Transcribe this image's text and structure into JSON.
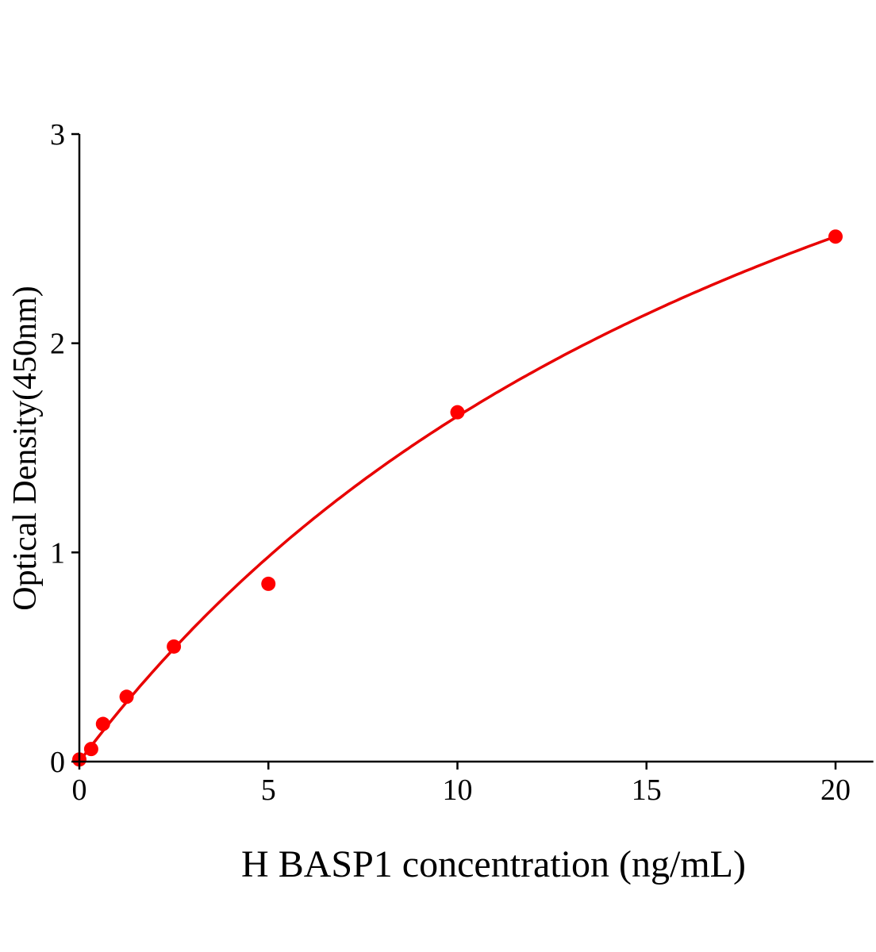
{
  "chart_data": {
    "type": "scatter",
    "title": "",
    "xlabel": "H BASP1 concentration (ng/mL)",
    "ylabel": "Optical Density(450nm)",
    "xlim": [
      0,
      21
    ],
    "ylim": [
      0,
      3
    ],
    "xticks": [
      0,
      5,
      10,
      15,
      20
    ],
    "yticks": [
      0,
      1,
      2,
      3
    ],
    "grid": false,
    "legend": "none",
    "colors": {
      "points": "#ff0000",
      "curve": "#e80000",
      "axes": "#000000"
    },
    "series": [
      {
        "x": [
          0,
          0.3125,
          0.625,
          1.25,
          2.5,
          5,
          10,
          20
        ],
        "y": [
          0.01,
          0.06,
          0.18,
          0.31,
          0.55,
          0.85,
          1.67,
          2.51
        ],
        "fit_curve": true
      }
    ]
  }
}
